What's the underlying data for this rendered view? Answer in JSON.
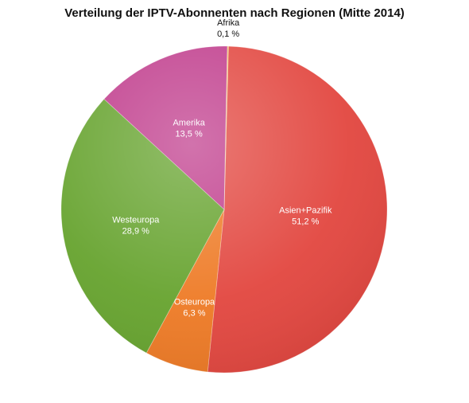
{
  "chart_data": {
    "type": "pie",
    "title": "Verteilung der IPTV-Abonnenten nach Regionen (Mitte 2014)",
    "slices": [
      {
        "label": "Asien+Pazifik",
        "value": 51.2,
        "value_text": "51,2 %",
        "color": "#e2463f"
      },
      {
        "label": "Osteuropa",
        "value": 6.3,
        "value_text": "6,3 %",
        "color": "#ee7a25"
      },
      {
        "label": "Westeuropa",
        "value": 28.9,
        "value_text": "28,9 %",
        "color": "#66a32e"
      },
      {
        "label": "Amerika",
        "value": 13.5,
        "value_text": "13,5 %",
        "color": "#c03c8c"
      },
      {
        "label": "Afrika",
        "value": 0.1,
        "value_text": "0,1 %",
        "color": "#f2c14e"
      }
    ]
  }
}
